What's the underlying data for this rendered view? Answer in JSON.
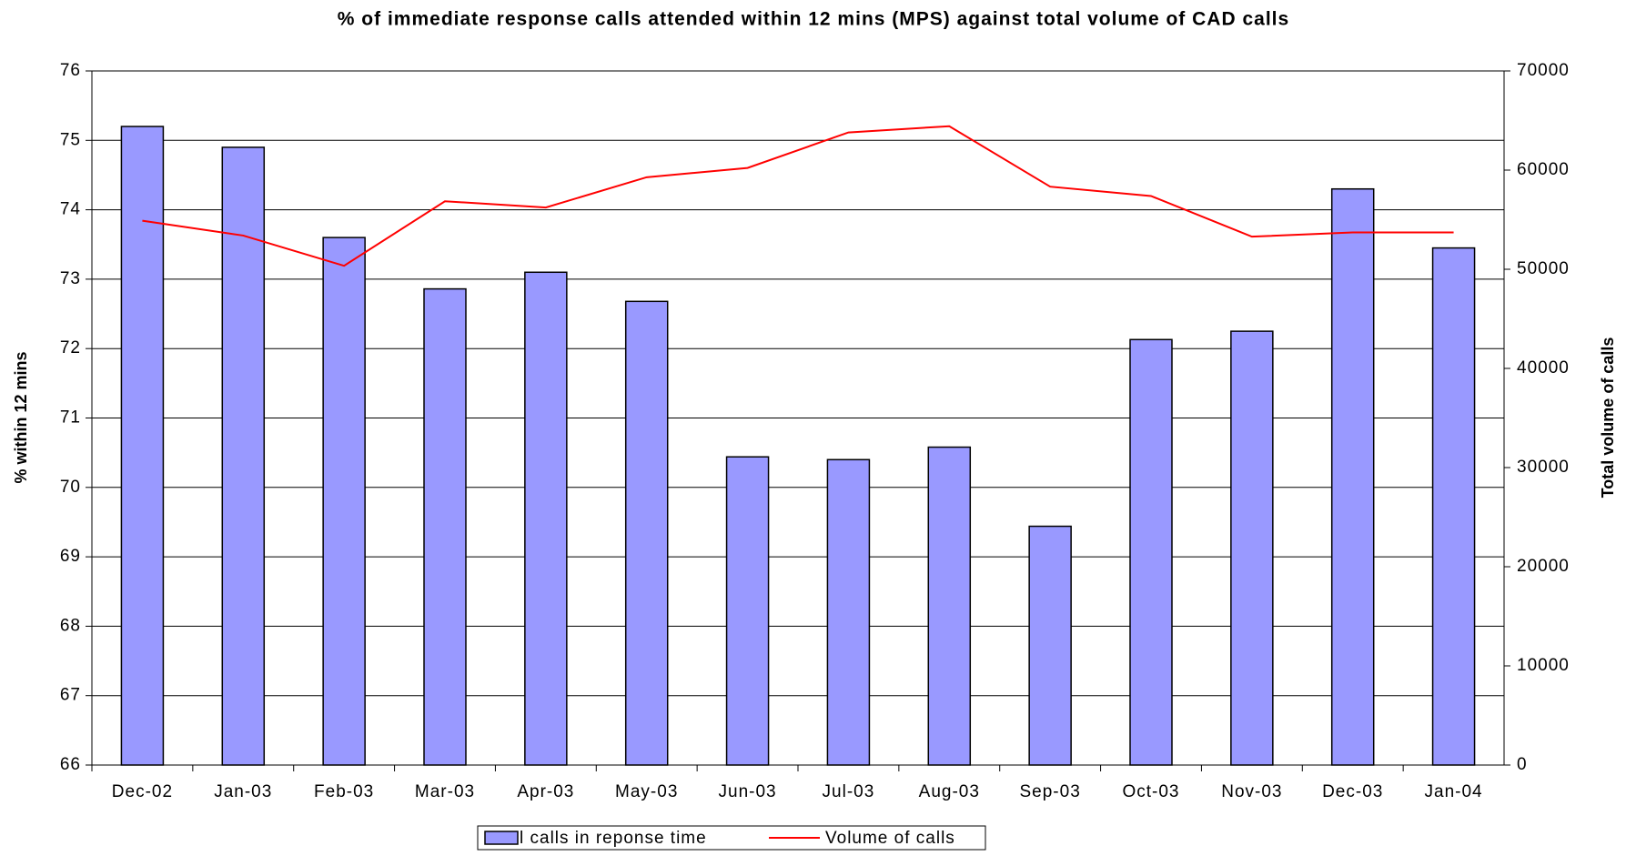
{
  "chart_data": {
    "type": "bar-line",
    "title": "% of immediate response calls attended within 12 mins (MPS) against total volume of CAD calls",
    "y_label": "% within 12 mins",
    "y2_label": "Total volume of calls",
    "categories": [
      "Dec-02",
      "Jan-03",
      "Feb-03",
      "Mar-03",
      "Apr-03",
      "May-03",
      "Jun-03",
      "Jul-03",
      "Aug-03",
      "Sep-03",
      "Oct-03",
      "Nov-03",
      "Dec-03",
      "Jan-04"
    ],
    "series": [
      {
        "name": "l calls in reponse time",
        "type": "bar",
        "color": "#9999ff",
        "values": [
          75.2,
          74.9,
          73.6,
          72.86,
          73.1,
          72.68,
          70.44,
          70.4,
          70.58,
          69.44,
          72.13,
          72.25,
          74.3,
          73.45
        ]
      },
      {
        "name": "Volume of calls",
        "type": "line",
        "axis": "y2",
        "color": "#ff0000",
        "values": [
          54900,
          53400,
          50350,
          56860,
          56230,
          59280,
          60220,
          63800,
          64430,
          58330,
          57390,
          53290,
          53710,
          53710
        ]
      }
    ],
    "ylim": [
      66,
      76
    ],
    "yticks": [
      66,
      67,
      68,
      69,
      70,
      71,
      72,
      73,
      74,
      75,
      76
    ],
    "y2lim": [
      0,
      70000
    ],
    "y2ticks": [
      0,
      10000,
      20000,
      30000,
      40000,
      50000,
      60000,
      70000
    ],
    "grid": true,
    "legend": "bottom"
  }
}
